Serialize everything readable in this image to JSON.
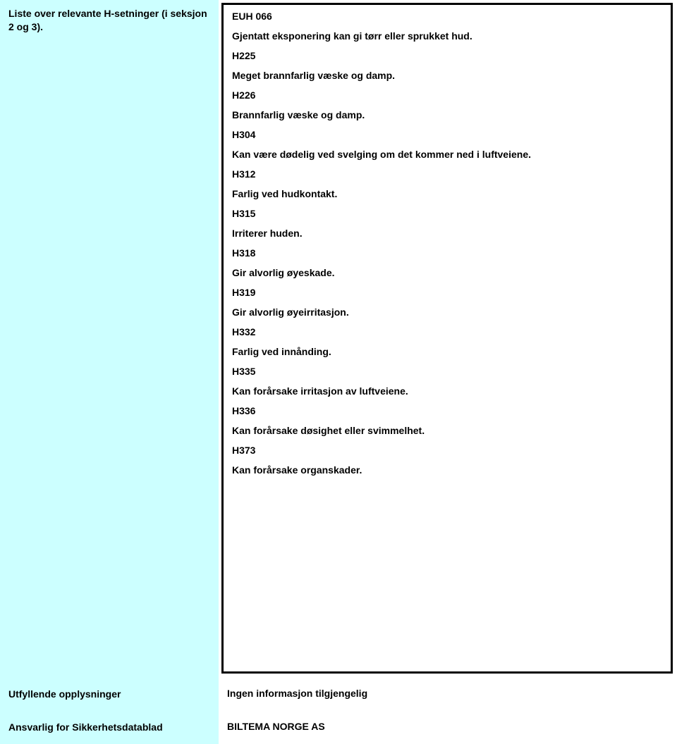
{
  "main": {
    "left_label": "Liste over relevante H-setninger (i seksjon 2 og 3).",
    "statements": [
      {
        "code": "EUH 066",
        "desc": "Gjentatt eksponering kan gi tørr eller sprukket hud."
      },
      {
        "code": "H225",
        "desc": "Meget brannfarlig væske og damp."
      },
      {
        "code": "H226",
        "desc": "Brannfarlig væske og damp."
      },
      {
        "code": "H304",
        "desc": "Kan være dødelig ved svelging om det kommer ned i luftveiene."
      },
      {
        "code": "H312",
        "desc": "Farlig ved hudkontakt."
      },
      {
        "code": "H315",
        "desc": "Irriterer huden."
      },
      {
        "code": "H318",
        "desc": "Gir alvorlig øyeskade."
      },
      {
        "code": "H319",
        "desc": "Gir alvorlig øyeirritasjon."
      },
      {
        "code": "H332",
        "desc": "Farlig ved innånding."
      },
      {
        "code": "H335",
        "desc": "Kan forårsake irritasjon av luftveiene."
      },
      {
        "code": "H336",
        "desc": "Kan forårsake døsighet eller svimmelhet."
      },
      {
        "code": "H373",
        "desc": "Kan forårsake organskader."
      }
    ]
  },
  "info_row": {
    "left": "Utfyllende opplysninger",
    "right": "Ingen informasjon tilgjengelig"
  },
  "responsible_row": {
    "left": "Ansvarlig for Sikkerhetsdatablad",
    "right": "BILTEMA NORGE AS"
  },
  "colors": {
    "left_bg": "#ccffff",
    "border": "#000000",
    "text": "#000000",
    "page_bg": "#ffffff"
  }
}
